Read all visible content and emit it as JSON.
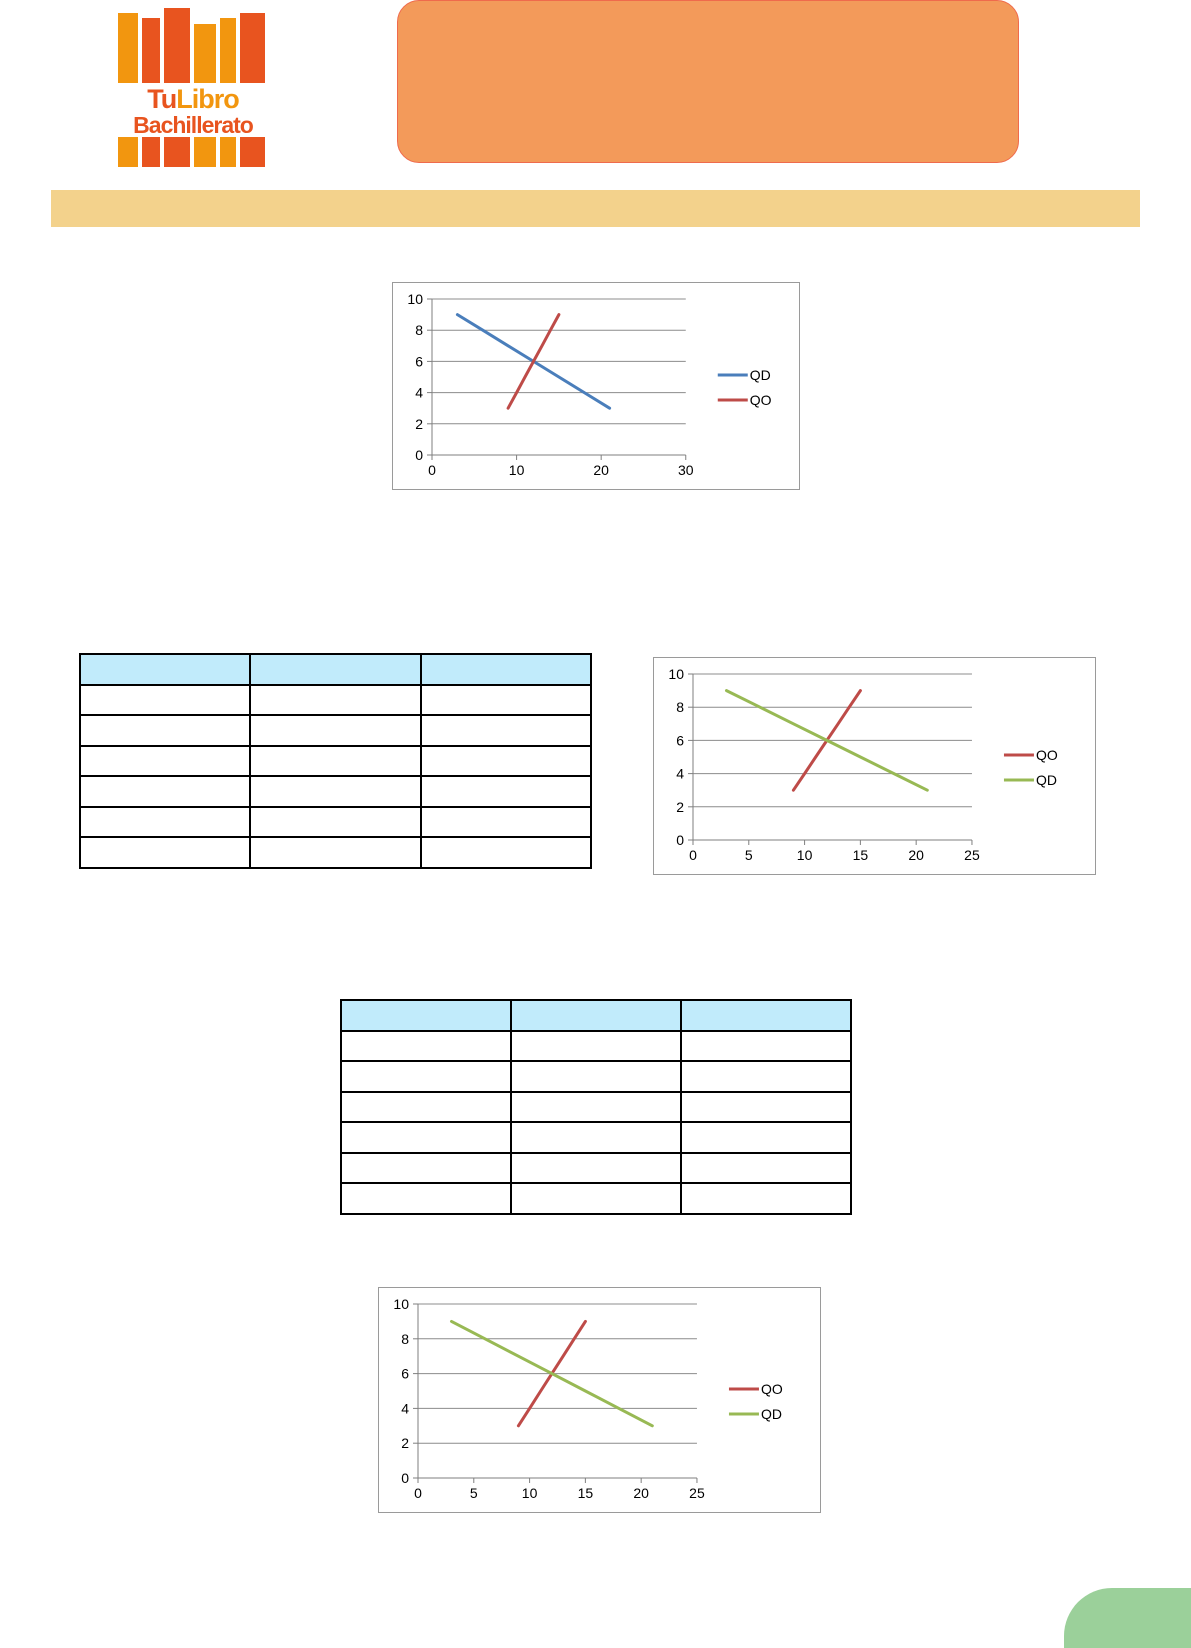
{
  "logo": {
    "line1_part1": "Tu",
    "line1_part2": "Libro",
    "line2": "Bachillerato",
    "colors": [
      "#f2960f",
      "#e8541f"
    ]
  },
  "colors": {
    "title_box": "#f39a5a",
    "section_band": "#f3d28c",
    "table_header": "#c1ebfb",
    "page_tab": "#9bd09a"
  },
  "chart_data": [
    {
      "type": "line",
      "xlim": [
        0,
        30
      ],
      "ylim": [
        0,
        10
      ],
      "xticks": [
        0,
        10,
        20,
        30
      ],
      "yticks": [
        0,
        2,
        4,
        6,
        8,
        10
      ],
      "grid": true,
      "legend_position": "right",
      "series": [
        {
          "name": "QD",
          "color": "#4a7ebb",
          "points": [
            [
              3,
              9
            ],
            [
              6,
              8
            ],
            [
              9,
              7
            ],
            [
              12,
              6
            ],
            [
              15,
              5
            ],
            [
              18,
              4
            ],
            [
              21,
              3
            ]
          ]
        },
        {
          "name": "QO",
          "color": "#be4b48",
          "points": [
            [
              9,
              3
            ],
            [
              10,
              4
            ],
            [
              11,
              5
            ],
            [
              12,
              6
            ],
            [
              13,
              7
            ],
            [
              14,
              8
            ],
            [
              15,
              9
            ]
          ]
        }
      ]
    },
    {
      "type": "line",
      "xlim": [
        0,
        25
      ],
      "ylim": [
        0,
        10
      ],
      "xticks": [
        0,
        5,
        10,
        15,
        20,
        25
      ],
      "yticks": [
        0,
        2,
        4,
        6,
        8,
        10
      ],
      "grid": true,
      "legend_position": "right",
      "series": [
        {
          "name": "QO",
          "color": "#be4b48",
          "points": [
            [
              9,
              3
            ],
            [
              10,
              4
            ],
            [
              11,
              5
            ],
            [
              12,
              6
            ],
            [
              13,
              7
            ],
            [
              14,
              8
            ],
            [
              15,
              9
            ]
          ]
        },
        {
          "name": "QD",
          "color": "#98b954",
          "points": [
            [
              3,
              9
            ],
            [
              6,
              8
            ],
            [
              9,
              7
            ],
            [
              12,
              6
            ],
            [
              15,
              5
            ],
            [
              18,
              4
            ],
            [
              21,
              3
            ]
          ]
        }
      ]
    },
    {
      "type": "line",
      "xlim": [
        0,
        25
      ],
      "ylim": [
        0,
        10
      ],
      "xticks": [
        0,
        5,
        10,
        15,
        20,
        25
      ],
      "yticks": [
        0,
        2,
        4,
        6,
        8,
        10
      ],
      "grid": true,
      "legend_position": "right",
      "series": [
        {
          "name": "QO",
          "color": "#be4b48",
          "points": [
            [
              9,
              3
            ],
            [
              10,
              4
            ],
            [
              11,
              5
            ],
            [
              12,
              6
            ],
            [
              13,
              7
            ],
            [
              14,
              8
            ],
            [
              15,
              9
            ]
          ]
        },
        {
          "name": "QD",
          "color": "#98b954",
          "points": [
            [
              3,
              9
            ],
            [
              6,
              8
            ],
            [
              9,
              7
            ],
            [
              12,
              6
            ],
            [
              15,
              5
            ],
            [
              18,
              4
            ],
            [
              21,
              3
            ]
          ]
        }
      ]
    }
  ],
  "tables": [
    {
      "columns": 3,
      "rows": 6,
      "header": [
        "",
        "",
        ""
      ],
      "cells": []
    },
    {
      "columns": 3,
      "rows": 6,
      "header": [
        "",
        "",
        ""
      ],
      "cells": []
    }
  ]
}
